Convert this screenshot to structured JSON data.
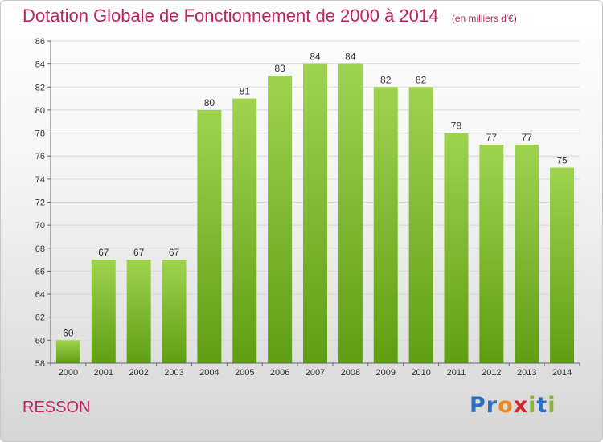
{
  "header": {
    "title": "Dotation Globale de Fonctionnement de 2000 à 2014",
    "subtitle": "(en milliers d'€)"
  },
  "footer": {
    "commune": "RESSON",
    "logo_text": "Proxiti"
  },
  "colors": {
    "title": "#c4235f",
    "bar_top": "#9fd34f",
    "bar_bottom": "#5f9e12",
    "gridline": "#d9d9d9",
    "logo_letters": [
      "#2a6fc0",
      "#2a6fc0",
      "#f08a1c",
      "#cc2a2a",
      "#8ab834",
      "#2a6fc0",
      "#8ab834"
    ]
  },
  "chart_data": {
    "type": "bar",
    "title": "Dotation Globale de Fonctionnement de 2000 à 2014",
    "subtitle": "(en milliers d'€)",
    "categories": [
      "2000",
      "2001",
      "2002",
      "2003",
      "2004",
      "2005",
      "2006",
      "2007",
      "2008",
      "2009",
      "2010",
      "2011",
      "2012",
      "2013",
      "2014"
    ],
    "values": [
      60,
      67,
      67,
      67,
      80,
      81,
      83,
      84,
      84,
      82,
      82,
      78,
      77,
      77,
      75
    ],
    "ylim": [
      58,
      86
    ],
    "yticks": [
      58,
      60,
      62,
      64,
      66,
      68,
      70,
      72,
      74,
      76,
      78,
      80,
      82,
      84,
      86
    ],
    "xlabel": "",
    "ylabel": "",
    "grid": true,
    "legend": "none"
  }
}
